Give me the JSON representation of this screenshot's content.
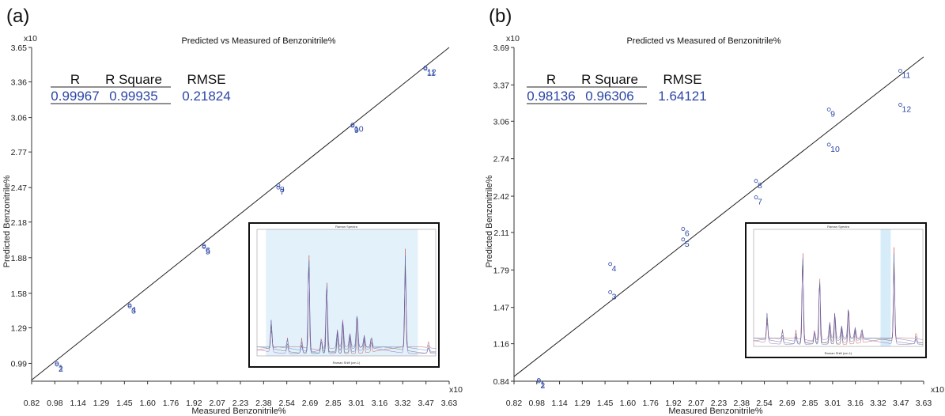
{
  "chart_data": [
    {
      "type": "scatter",
      "panel_label": "(a)",
      "title": "Predicted vs Measured of Benzonitrile%",
      "xlabel": "Measured Benzonitrile%",
      "ylabel": "Predicted Benzonitrile%",
      "x_exponent": "x10",
      "y_exponent": "x10",
      "xlim": [
        0.82,
        3.63
      ],
      "ylim": [
        0.84,
        3.65
      ],
      "x_ticks": [
        "0.82",
        "0.98",
        "1.14",
        "1.29",
        "1.45",
        "1.60",
        "1.76",
        "1.92",
        "2.07",
        "2.23",
        "2.38",
        "2.54",
        "2.69",
        "2.85",
        "3.01",
        "3.16",
        "3.32",
        "3.47",
        "3.63"
      ],
      "y_ticks": [
        {
          "label": "0.99",
          "value": 0.99
        },
        {
          "label": "1.29",
          "value": 1.29
        },
        {
          "label": "1.58",
          "value": 1.58
        },
        {
          "label": "1.88",
          "value": 1.88
        },
        {
          "label": "2.18",
          "value": 2.18
        },
        {
          "label": "2.47",
          "value": 2.47
        },
        {
          "label": "2.77",
          "value": 2.77
        },
        {
          "label": "3.06",
          "value": 3.06
        },
        {
          "label": "3.36",
          "value": 3.36
        },
        {
          "label": "3.65",
          "value": 3.65
        }
      ],
      "fit_line": {
        "x": [
          0.82,
          3.63
        ],
        "y": [
          0.85,
          3.65
        ]
      },
      "points": [
        {
          "x": 0.99,
          "y": 0.99,
          "label": "1"
        },
        {
          "x": 0.99,
          "y": 0.98,
          "label": "2"
        },
        {
          "x": 1.48,
          "y": 1.47,
          "label": "3"
        },
        {
          "x": 1.48,
          "y": 1.48,
          "label": "4"
        },
        {
          "x": 1.98,
          "y": 1.97,
          "label": "5"
        },
        {
          "x": 1.98,
          "y": 1.98,
          "label": "6"
        },
        {
          "x": 2.48,
          "y": 2.47,
          "label": "7"
        },
        {
          "x": 2.48,
          "y": 2.49,
          "label": "8"
        },
        {
          "x": 2.98,
          "y": 2.99,
          "label": "9"
        },
        {
          "x": 2.98,
          "y": 3.0,
          "label": "10"
        },
        {
          "x": 3.47,
          "y": 3.47,
          "label": "11"
        },
        {
          "x": 3.47,
          "y": 3.48,
          "label": "12"
        }
      ],
      "stats": {
        "headers": [
          "R",
          "R Square",
          "RMSE"
        ],
        "values": [
          "0.99967",
          "0.99935",
          "0.21824"
        ]
      },
      "inset": {
        "title": "Raman Spectra",
        "xlabel": "Raman Shift (cm-1)"
      }
    },
    {
      "type": "scatter",
      "panel_label": "(b)",
      "title": "Predicted vs Measured of Benzonitrile%",
      "xlabel": "Measured Benzonitrile%",
      "ylabel": "Predicted Benzonitrile%",
      "x_exponent": "x10",
      "y_exponent": "x10",
      "xlim": [
        0.82,
        3.63
      ],
      "ylim": [
        0.84,
        3.69
      ],
      "x_ticks": [
        "0.82",
        "0.98",
        "1.14",
        "1.29",
        "1.45",
        "1.60",
        "1.76",
        "1.92",
        "2.07",
        "2.23",
        "2.38",
        "2.54",
        "2.69",
        "2.85",
        "3.01",
        "3.16",
        "3.32",
        "3.47",
        "3.63"
      ],
      "y_ticks": [
        {
          "label": "0.84",
          "value": 0.84
        },
        {
          "label": "1.16",
          "value": 1.16
        },
        {
          "label": "1.47",
          "value": 1.47
        },
        {
          "label": "1.79",
          "value": 1.79
        },
        {
          "label": "2.11",
          "value": 2.11
        },
        {
          "label": "2.42",
          "value": 2.42
        },
        {
          "label": "2.74",
          "value": 2.74
        },
        {
          "label": "3.06",
          "value": 3.06
        },
        {
          "label": "3.37",
          "value": 3.37
        },
        {
          "label": "3.69",
          "value": 3.69
        }
      ],
      "fit_line": {
        "x": [
          0.82,
          3.63
        ],
        "y": [
          0.88,
          3.61
        ]
      },
      "points": [
        {
          "x": 0.99,
          "y": 0.85,
          "label": "1"
        },
        {
          "x": 0.99,
          "y": 0.84,
          "label": "2"
        },
        {
          "x": 1.48,
          "y": 1.6,
          "label": "3"
        },
        {
          "x": 1.48,
          "y": 1.84,
          "label": "4"
        },
        {
          "x": 1.98,
          "y": 2.05,
          "label": "5"
        },
        {
          "x": 1.98,
          "y": 2.14,
          "label": "6"
        },
        {
          "x": 2.48,
          "y": 2.41,
          "label": "7"
        },
        {
          "x": 2.48,
          "y": 2.55,
          "label": "8"
        },
        {
          "x": 2.98,
          "y": 3.16,
          "label": "9"
        },
        {
          "x": 2.98,
          "y": 2.86,
          "label": "10"
        },
        {
          "x": 3.47,
          "y": 3.49,
          "label": "11"
        },
        {
          "x": 3.47,
          "y": 3.2,
          "label": "12"
        }
      ],
      "stats": {
        "headers": [
          "R",
          "R Square",
          "RMSE"
        ],
        "values": [
          "0.98136",
          "0.96306",
          "1.64121"
        ]
      },
      "inset": {
        "title": "Raman Spectra",
        "xlabel": "Raman Shift (cm-1)"
      }
    }
  ]
}
